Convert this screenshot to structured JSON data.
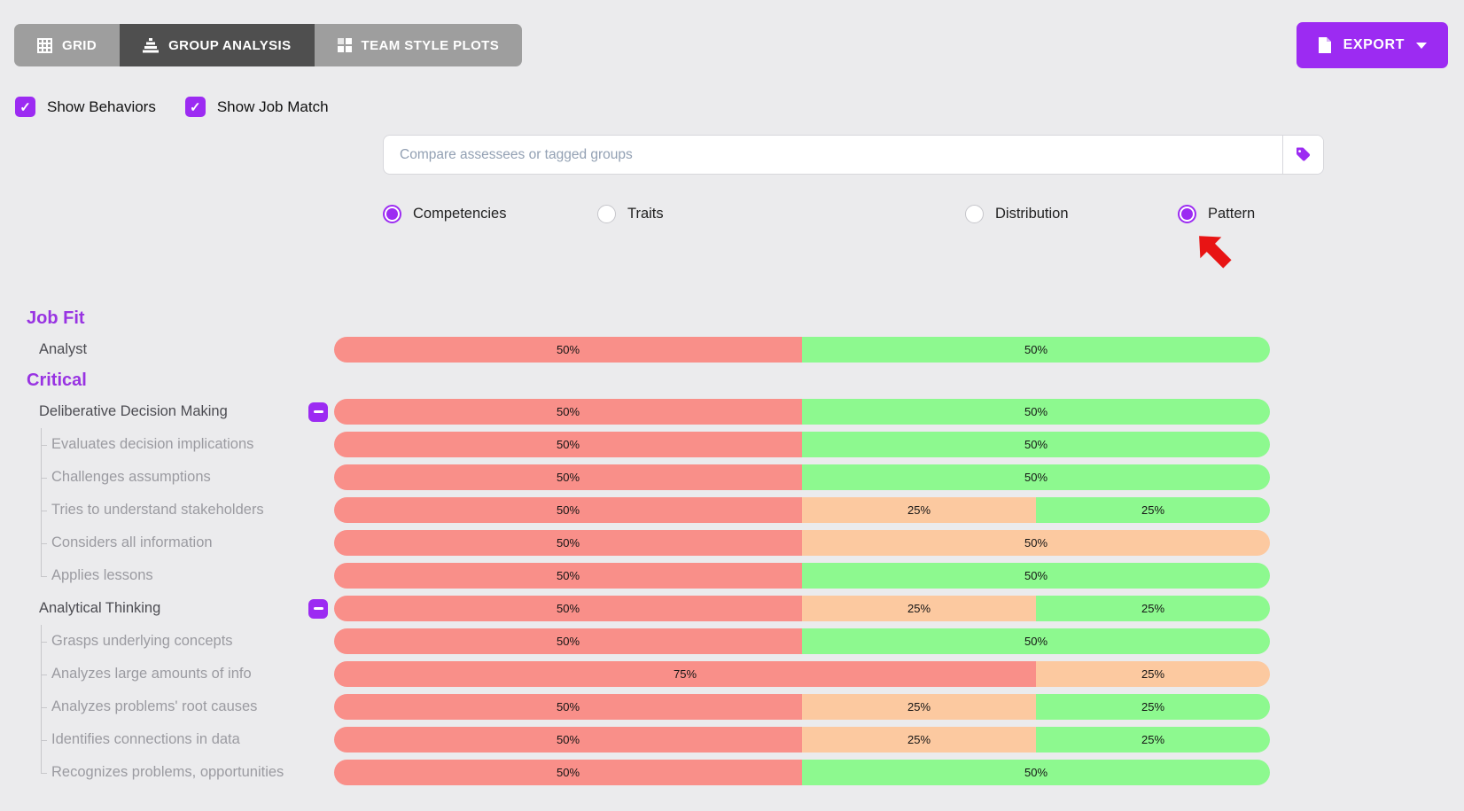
{
  "colors": {
    "accent": "#9c2bf2",
    "section_heading": "#9833e2",
    "bar_red": "#f98f89",
    "bar_orange": "#fcc9a0",
    "bar_green": "#8df98f",
    "tab_inactive": "#9e9e9e",
    "tab_active": "#4f4f4f",
    "arrow_red": "#e81414"
  },
  "tabs": [
    {
      "label": "GRID",
      "icon": "grid-icon",
      "active": false
    },
    {
      "label": "GROUP ANALYSIS",
      "icon": "group-analysis-icon",
      "active": true
    },
    {
      "label": "TEAM STYLE PLOTS",
      "icon": "team-style-plots-icon",
      "active": false
    }
  ],
  "export_button": {
    "label": "EXPORT",
    "icon": "document-icon"
  },
  "toggles": [
    {
      "label": "Show Behaviors",
      "checked": true
    },
    {
      "label": "Show Job Match",
      "checked": true
    }
  ],
  "search": {
    "placeholder": "Compare assessees or tagged groups",
    "button_icon": "tag-icon"
  },
  "view_options": [
    {
      "label": "Competencies",
      "selected": true
    },
    {
      "label": "Traits",
      "selected": false
    },
    {
      "label": "Distribution",
      "selected": false
    },
    {
      "label": "Pattern",
      "selected": true,
      "annotated_with_arrow": true
    }
  ],
  "analysis": {
    "rows": [
      {
        "type": "section",
        "label": "Job Fit"
      },
      {
        "type": "parent",
        "label": "Analyst",
        "collapse_button": false,
        "segments": [
          {
            "color": "red",
            "pct": 50
          },
          {
            "color": "green",
            "pct": 50
          }
        ]
      },
      {
        "type": "section",
        "label": "Critical"
      },
      {
        "type": "parent",
        "label": "Deliberative Decision Making",
        "collapse_button": true,
        "segments": [
          {
            "color": "red",
            "pct": 50
          },
          {
            "color": "green",
            "pct": 50
          }
        ]
      },
      {
        "type": "behavior",
        "label": "Evaluates decision implications",
        "segments": [
          {
            "color": "red",
            "pct": 50
          },
          {
            "color": "green",
            "pct": 50
          }
        ]
      },
      {
        "type": "behavior",
        "label": "Challenges assumptions",
        "segments": [
          {
            "color": "red",
            "pct": 50
          },
          {
            "color": "green",
            "pct": 50
          }
        ]
      },
      {
        "type": "behavior",
        "label": "Tries to understand stakeholders",
        "segments": [
          {
            "color": "red",
            "pct": 50
          },
          {
            "color": "orange",
            "pct": 25
          },
          {
            "color": "green",
            "pct": 25
          }
        ]
      },
      {
        "type": "behavior",
        "label": "Considers all information",
        "segments": [
          {
            "color": "red",
            "pct": 50
          },
          {
            "color": "orange",
            "pct": 50
          }
        ]
      },
      {
        "type": "behavior",
        "label": "Applies lessons",
        "segments": [
          {
            "color": "red",
            "pct": 50
          },
          {
            "color": "green",
            "pct": 50
          }
        ]
      },
      {
        "type": "parent",
        "label": "Analytical Thinking",
        "collapse_button": true,
        "segments": [
          {
            "color": "red",
            "pct": 50
          },
          {
            "color": "orange",
            "pct": 25
          },
          {
            "color": "green",
            "pct": 25
          }
        ]
      },
      {
        "type": "behavior",
        "label": "Grasps underlying concepts",
        "segments": [
          {
            "color": "red",
            "pct": 50
          },
          {
            "color": "green",
            "pct": 50
          }
        ]
      },
      {
        "type": "behavior",
        "label": "Analyzes large amounts of info",
        "segments": [
          {
            "color": "red",
            "pct": 75
          },
          {
            "color": "orange",
            "pct": 25
          }
        ]
      },
      {
        "type": "behavior",
        "label": "Analyzes problems' root causes",
        "segments": [
          {
            "color": "red",
            "pct": 50
          },
          {
            "color": "orange",
            "pct": 25
          },
          {
            "color": "green",
            "pct": 25
          }
        ]
      },
      {
        "type": "behavior",
        "label": "Identifies connections in data",
        "segments": [
          {
            "color": "red",
            "pct": 50
          },
          {
            "color": "orange",
            "pct": 25
          },
          {
            "color": "green",
            "pct": 25
          }
        ]
      },
      {
        "type": "behavior",
        "label": "Recognizes problems, opportunities",
        "segments": [
          {
            "color": "red",
            "pct": 50
          },
          {
            "color": "green",
            "pct": 50
          }
        ]
      }
    ]
  }
}
